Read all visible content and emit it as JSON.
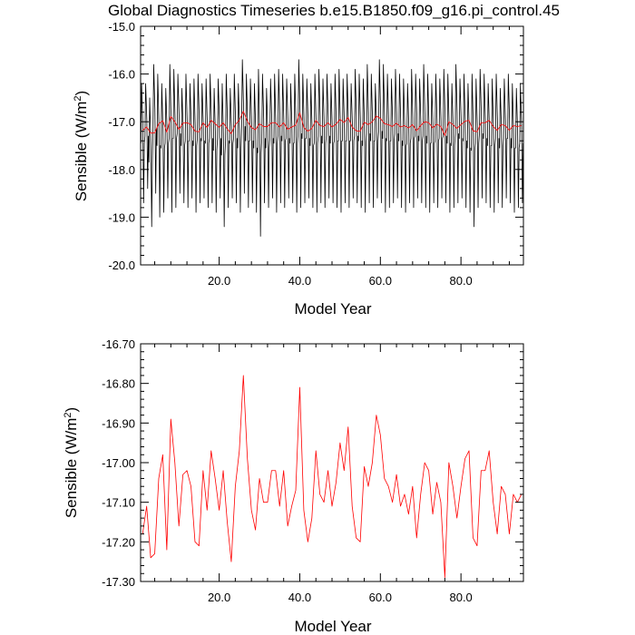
{
  "title": "Global Diagnostics Timeseries b.e15.B1850.f09_g16.pi_control.45",
  "colors": {
    "monthly": "#000000",
    "annual": "#ff0000",
    "frame": "#000000"
  },
  "chart_data": [
    {
      "type": "line",
      "xlabel": "Model Year",
      "ylabel": "Sensible (W/m",
      "ylabel_sup": "2",
      "ylabel_close": ")",
      "xlim": [
        0.5,
        95.5
      ],
      "ylim": [
        -20.0,
        -15.0
      ],
      "xticks": [
        20,
        40,
        60,
        80
      ],
      "xtick_labels": [
        "20.0",
        "40.0",
        "60.0",
        "80.0"
      ],
      "yticks": [
        -20,
        -19,
        -18,
        -17,
        -16,
        -15
      ],
      "ytick_labels": [
        "-20.0",
        "-19.0",
        "-18.0",
        "-17.0",
        "-16.0",
        "-15.0"
      ],
      "grid": false,
      "series": [
        {
          "role": "monthly",
          "color": "#000000",
          "yearly_max": [
            -16.2,
            -16.2,
            -16.5,
            -15.8,
            -16.0,
            -16.2,
            -16.3,
            -15.8,
            -15.9,
            -16.0,
            -16.3,
            -16.0,
            -16.2,
            -16.1,
            -16.0,
            -16.2,
            -16.1,
            -16.0,
            -16.3,
            -16.1,
            -16.2,
            -16.0,
            -16.3,
            -16.0,
            -16.2,
            -15.7,
            -16.0,
            -16.1,
            -16.2,
            -15.9,
            -16.0,
            -16.3,
            -16.1,
            -16.0,
            -15.9,
            -16.0,
            -16.1,
            -16.2,
            -16.0,
            -15.7,
            -16.0,
            -16.1,
            -16.2,
            -16.0,
            -15.9,
            -16.1,
            -16.0,
            -16.2,
            -16.0,
            -15.9,
            -16.1,
            -16.0,
            -16.2,
            -15.9,
            -16.0,
            -16.1,
            -15.8,
            -16.0,
            -16.2,
            -15.7,
            -15.8,
            -16.0,
            -16.1,
            -15.9,
            -16.0,
            -16.1,
            -16.2,
            -15.9,
            -16.0,
            -16.1,
            -15.8,
            -16.0,
            -16.2,
            -16.0,
            -16.1,
            -15.9,
            -16.0,
            -16.2,
            -15.8,
            -16.1,
            -16.0,
            -16.2,
            -16.0,
            -16.1,
            -15.9,
            -16.0,
            -16.2,
            -16.1,
            -16.0,
            -16.3,
            -16.1,
            -16.0,
            -16.2,
            -16.3,
            -16.2
          ],
          "yearly_min": [
            -18.7,
            -18.4,
            -19.2,
            -18.5,
            -19.0,
            -18.9,
            -18.6,
            -18.9,
            -18.8,
            -18.5,
            -18.7,
            -18.8,
            -18.6,
            -18.9,
            -18.7,
            -18.6,
            -18.8,
            -18.7,
            -18.9,
            -18.6,
            -19.2,
            -18.8,
            -18.6,
            -18.7,
            -18.9,
            -18.5,
            -18.8,
            -18.7,
            -18.9,
            -19.4,
            -18.7,
            -18.8,
            -18.6,
            -18.9,
            -18.7,
            -18.8,
            -18.6,
            -18.7,
            -18.9,
            -18.8,
            -18.7,
            -18.6,
            -18.8,
            -18.9,
            -18.7,
            -18.8,
            -18.6,
            -18.7,
            -18.8,
            -18.9,
            -18.7,
            -18.8,
            -18.6,
            -18.7,
            -18.8,
            -18.9,
            -18.7,
            -18.8,
            -18.6,
            -18.7,
            -18.9,
            -18.8,
            -18.7,
            -18.6,
            -18.8,
            -18.9,
            -18.7,
            -18.8,
            -18.6,
            -18.7,
            -18.8,
            -18.9,
            -18.7,
            -18.8,
            -18.6,
            -18.7,
            -18.9,
            -18.8,
            -18.7,
            -18.6,
            -18.8,
            -18.9,
            -19.2,
            -18.8,
            -18.6,
            -18.7,
            -18.8,
            -18.9,
            -18.7,
            -18.8,
            -18.6,
            -18.7,
            -18.9,
            -18.8,
            -18.7
          ]
        },
        {
          "role": "annual",
          "color": "#ff0000",
          "x_start": 1,
          "values": [
            -17.18,
            -17.11,
            -17.24,
            -17.23,
            -17.04,
            -16.98,
            -17.22,
            -16.89,
            -17.0,
            -17.16,
            -17.03,
            -17.02,
            -17.06,
            -17.2,
            -17.21,
            -17.02,
            -17.12,
            -16.97,
            -17.04,
            -17.12,
            -17.02,
            -17.15,
            -17.25,
            -17.06,
            -16.97,
            -16.78,
            -16.99,
            -17.12,
            -17.17,
            -17.04,
            -17.1,
            -17.1,
            -17.02,
            -17.02,
            -17.11,
            -17.02,
            -17.16,
            -17.11,
            -17.07,
            -16.81,
            -17.12,
            -17.2,
            -17.14,
            -16.97,
            -17.08,
            -17.1,
            -17.02,
            -17.11,
            -17.05,
            -16.95,
            -17.02,
            -16.91,
            -17.11,
            -17.19,
            -17.2,
            -17.01,
            -17.06,
            -17.0,
            -16.88,
            -16.93,
            -17.04,
            -17.06,
            -17.1,
            -17.03,
            -17.11,
            -17.08,
            -17.13,
            -17.06,
            -17.19,
            -17.08,
            -17.0,
            -17.02,
            -17.13,
            -17.05,
            -17.1,
            -17.29,
            -17.0,
            -17.06,
            -17.14,
            -17.06,
            -16.99,
            -16.97,
            -17.19,
            -17.21,
            -17.02,
            -17.02,
            -16.97,
            -17.1,
            -17.18,
            -17.06,
            -17.08,
            -17.18,
            -17.08,
            -17.1,
            -17.08
          ]
        }
      ]
    },
    {
      "type": "line",
      "xlabel": "Model Year",
      "ylabel": "Sensible (W/m",
      "ylabel_sup": "2",
      "ylabel_close": ")",
      "xlim": [
        0.5,
        95.5
      ],
      "ylim": [
        -17.3,
        -16.7
      ],
      "xticks": [
        20,
        40,
        60,
        80
      ],
      "xtick_labels": [
        "20.0",
        "40.0",
        "60.0",
        "80.0"
      ],
      "yticks": [
        -17.3,
        -17.2,
        -17.1,
        -17.0,
        -16.9,
        -16.8,
        -16.7
      ],
      "ytick_labels": [
        "-17.30",
        "-17.20",
        "-17.10",
        "-17.00",
        "-16.90",
        "-16.80",
        "-16.70"
      ],
      "grid": false,
      "series": [
        {
          "role": "annual",
          "color": "#ff0000",
          "x_start": 1,
          "values": [
            -17.18,
            -17.11,
            -17.24,
            -17.23,
            -17.04,
            -16.98,
            -17.22,
            -16.89,
            -17.0,
            -17.16,
            -17.03,
            -17.02,
            -17.06,
            -17.2,
            -17.21,
            -17.02,
            -17.12,
            -16.97,
            -17.04,
            -17.12,
            -17.02,
            -17.15,
            -17.25,
            -17.06,
            -16.97,
            -16.78,
            -16.99,
            -17.12,
            -17.17,
            -17.04,
            -17.1,
            -17.1,
            -17.02,
            -17.02,
            -17.11,
            -17.02,
            -17.16,
            -17.11,
            -17.07,
            -16.81,
            -17.12,
            -17.2,
            -17.14,
            -16.97,
            -17.08,
            -17.1,
            -17.02,
            -17.11,
            -17.05,
            -16.95,
            -17.02,
            -16.91,
            -17.11,
            -17.19,
            -17.2,
            -17.01,
            -17.06,
            -17.0,
            -16.88,
            -16.93,
            -17.04,
            -17.06,
            -17.1,
            -17.03,
            -17.11,
            -17.08,
            -17.13,
            -17.06,
            -17.19,
            -17.08,
            -17.0,
            -17.02,
            -17.13,
            -17.05,
            -17.1,
            -17.29,
            -17.0,
            -17.06,
            -17.14,
            -17.06,
            -16.99,
            -16.97,
            -17.19,
            -17.21,
            -17.02,
            -17.02,
            -16.97,
            -17.1,
            -17.18,
            -17.06,
            -17.08,
            -17.18,
            -17.08,
            -17.1,
            -17.08
          ]
        }
      ]
    }
  ]
}
